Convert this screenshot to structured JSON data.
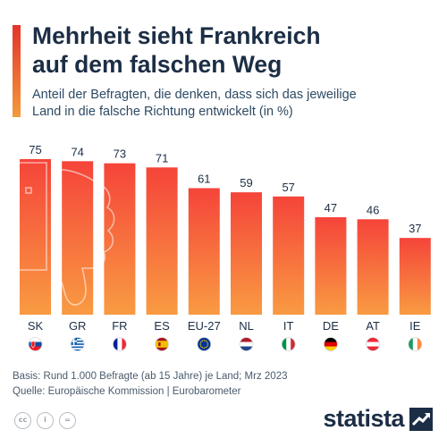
{
  "header": {
    "title_line1": "Mehrheit sieht Frankreich",
    "title_line2": "auf dem falschen Weg",
    "subtitle_line1": "Anteil der Befragten, die denken, dass sich das jeweilige",
    "subtitle_line2": "Land in die falsche Richtung entwickelt (in %)"
  },
  "chart_data": {
    "type": "bar",
    "title": "Mehrheit sieht Frankreich auf dem falschen Weg",
    "subtitle": "Anteil der Befragten, die denken, dass sich das jeweilige Land in die falsche Richtung entwickelt (in %)",
    "categories": [
      "SK",
      "GR",
      "FR",
      "ES",
      "EU-27",
      "NL",
      "IT",
      "DE",
      "AT",
      "IE"
    ],
    "values": [
      75,
      74,
      73,
      71,
      61,
      59,
      57,
      47,
      46,
      37
    ],
    "flags": [
      "slovakia-flag",
      "greece-flag",
      "france-flag",
      "spain-flag",
      "eu-flag",
      "netherlands-flag",
      "italy-flag",
      "germany-flag",
      "austria-flag",
      "ireland-flag"
    ],
    "ylim": [
      0,
      75
    ],
    "bar_gradient": [
      "#f5443a",
      "#f99b42"
    ],
    "grid": false,
    "decoration": "thumbs-down-icon"
  },
  "footer": {
    "basis": "Basis: Rund 1.000 Befragte (ab 15 Jahre) je Land; Mrz 2023",
    "source": "Quelle: Europäische Kommission | Eurobarometer"
  },
  "license_icons": [
    "cc-icon",
    "by-icon",
    "nd-icon"
  ],
  "license_glyphs": [
    "cc",
    "i",
    "="
  ],
  "brand": {
    "name": "statista"
  }
}
